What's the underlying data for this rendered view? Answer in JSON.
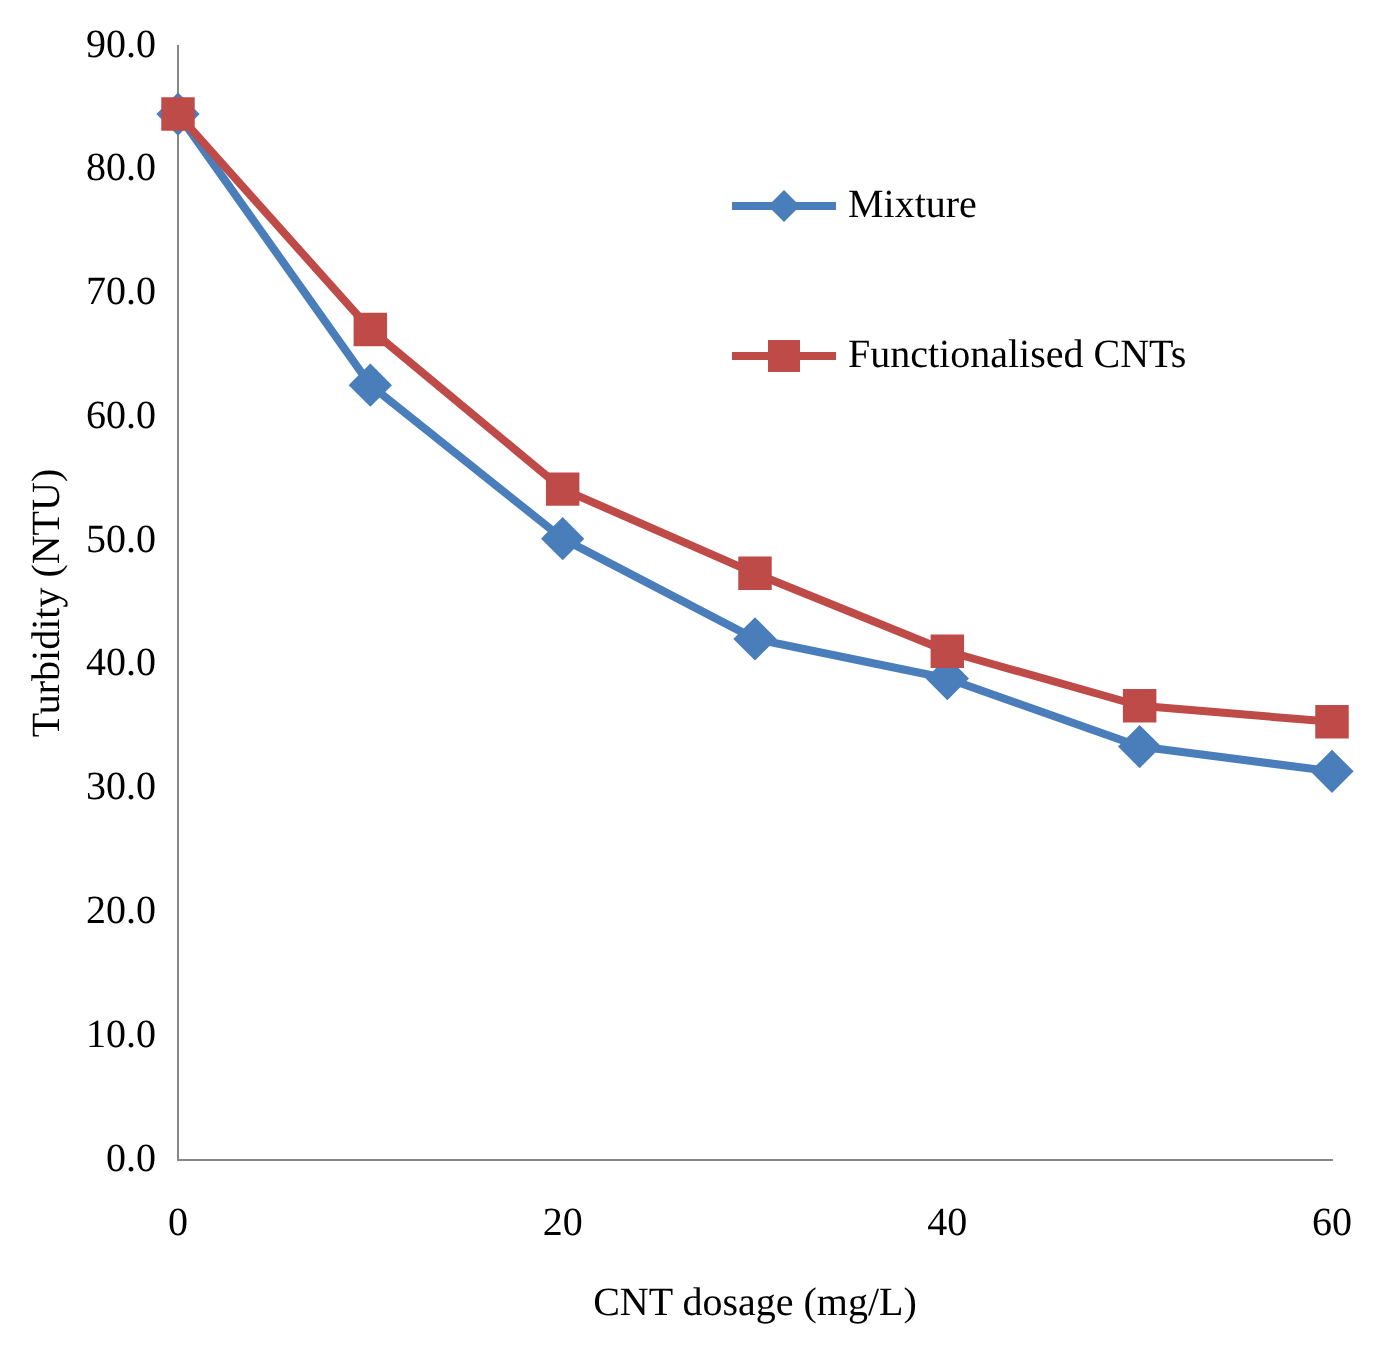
{
  "chart_data": {
    "type": "line",
    "xlabel": "CNT dosage (mg/L)",
    "ylabel": "Turbidity (NTU)",
    "x": [
      0,
      10,
      20,
      30,
      40,
      50,
      60
    ],
    "series": [
      {
        "name": "Mixture",
        "color": "#4a7ebb",
        "marker": "diamond",
        "values": [
          84.5,
          62.6,
          50.2,
          42.1,
          38.9,
          33.4,
          31.4
        ]
      },
      {
        "name": "Functionalised CNTs",
        "color": "#be4b48",
        "marker": "square",
        "values": [
          84.5,
          67.1,
          54.2,
          47.4,
          41.1,
          36.7,
          35.4
        ]
      }
    ],
    "xlim": [
      0,
      60
    ],
    "xticks": [
      0,
      20,
      40,
      60
    ],
    "ylim": [
      0,
      90
    ],
    "yticks": [
      {
        "value": 0,
        "label": "0.0"
      },
      {
        "value": 10,
        "label": "10.0"
      },
      {
        "value": 20,
        "label": "20.0"
      },
      {
        "value": 30,
        "label": "30.0"
      },
      {
        "value": 40,
        "label": "40.0"
      },
      {
        "value": 50,
        "label": "50.0"
      },
      {
        "value": 60,
        "label": "60.0"
      },
      {
        "value": 70,
        "label": "70.0"
      },
      {
        "value": 80,
        "label": "80.0"
      },
      {
        "value": 90,
        "label": "90.0"
      }
    ],
    "grid": false,
    "legend": "top right"
  }
}
